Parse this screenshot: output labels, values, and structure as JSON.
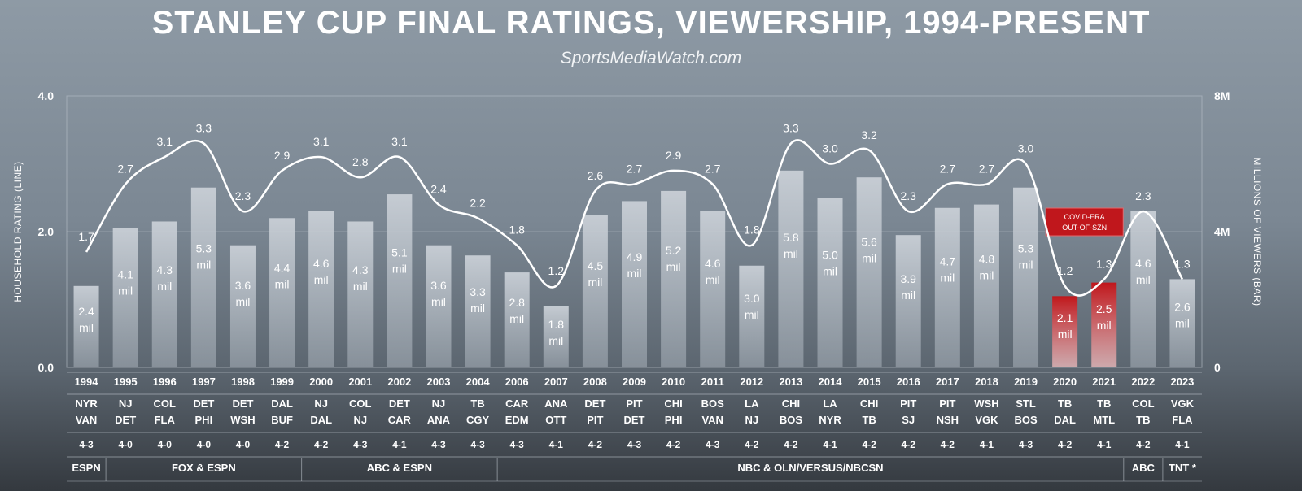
{
  "chart_data": {
    "type": "bar",
    "title": "STANLEY CUP FINAL RATINGS, VIEWERSHIP, 1994-PRESENT",
    "subtitle": "SportsMediaWatch.com",
    "ylabel_left": "HOUSEHOLD RATING (LINE)",
    "ylabel_right": "MILLIONS OF VIEWERS (BAR)",
    "ylim_left": [
      0,
      4
    ],
    "ylim_right": [
      0,
      8
    ],
    "left_ticks": [
      "0.0",
      "2.0",
      "4.0"
    ],
    "right_ticks": [
      "0",
      "4M",
      "8M"
    ],
    "mil_label": "mil",
    "annotation": "COVID-ERA OUT-OF-SZN",
    "covid_color": "#c0171c",
    "categories": [
      "1994",
      "1995",
      "1996",
      "1997",
      "1998",
      "1999",
      "2000",
      "2001",
      "2002",
      "2003",
      "2004",
      "2006",
      "2007",
      "2008",
      "2009",
      "2010",
      "2011",
      "2012",
      "2013",
      "2014",
      "2015",
      "2016",
      "2017",
      "2018",
      "2019",
      "2020",
      "2021",
      "2022",
      "2023"
    ],
    "series": [
      {
        "name": "Viewers (millions)",
        "kind": "bar",
        "values": [
          2.4,
          4.1,
          4.3,
          5.3,
          3.6,
          4.4,
          4.6,
          4.3,
          5.1,
          3.6,
          3.3,
          2.8,
          1.8,
          4.5,
          4.9,
          5.2,
          4.6,
          3.0,
          5.8,
          5.0,
          5.6,
          3.9,
          4.7,
          4.8,
          5.3,
          2.1,
          2.5,
          4.6,
          2.6
        ]
      },
      {
        "name": "Household rating",
        "kind": "line",
        "values": [
          1.7,
          2.7,
          3.1,
          3.3,
          2.3,
          2.9,
          3.1,
          2.8,
          3.1,
          2.4,
          2.2,
          1.8,
          1.2,
          2.6,
          2.7,
          2.9,
          2.7,
          1.8,
          3.3,
          3.0,
          3.2,
          2.3,
          2.7,
          2.7,
          3.0,
          1.2,
          1.3,
          2.3,
          1.3
        ]
      }
    ],
    "matchups_top": [
      "NYR",
      "NJ",
      "COL",
      "DET",
      "DET",
      "DAL",
      "NJ",
      "COL",
      "DET",
      "NJ",
      "TB",
      "CAR",
      "ANA",
      "DET",
      "PIT",
      "CHI",
      "BOS",
      "LA",
      "CHI",
      "LA",
      "CHI",
      "PIT",
      "PIT",
      "WSH",
      "STL",
      "TB",
      "TB",
      "COL",
      "VGK"
    ],
    "matchups_bottom": [
      "VAN",
      "DET",
      "FLA",
      "PHI",
      "WSH",
      "BUF",
      "DAL",
      "NJ",
      "CAR",
      "ANA",
      "CGY",
      "EDM",
      "OTT",
      "PIT",
      "DET",
      "PHI",
      "VAN",
      "NJ",
      "BOS",
      "NYR",
      "TB",
      "SJ",
      "NSH",
      "VGK",
      "BOS",
      "DAL",
      "MTL",
      "TB",
      "FLA"
    ],
    "series_results": [
      "4-3",
      "4-0",
      "4-0",
      "4-0",
      "4-0",
      "4-2",
      "4-2",
      "4-3",
      "4-1",
      "4-3",
      "4-3",
      "4-3",
      "4-1",
      "4-2",
      "4-3",
      "4-2",
      "4-3",
      "4-2",
      "4-2",
      "4-1",
      "4-2",
      "4-2",
      "4-2",
      "4-1",
      "4-3",
      "4-2",
      "4-1",
      "4-2",
      "4-1"
    ],
    "covid_years": [
      "2020",
      "2021"
    ],
    "networks": [
      {
        "label": "ESPN",
        "start": 0,
        "end": 0
      },
      {
        "label": "FOX & ESPN",
        "start": 1,
        "end": 5
      },
      {
        "label": "ABC & ESPN",
        "start": 6,
        "end": 10
      },
      {
        "label": "NBC & OLN/VERSUS/NBCSN",
        "start": 11,
        "end": 26
      },
      {
        "label": "ABC",
        "start": 27,
        "end": 27
      },
      {
        "label": "TNT *",
        "start": 28,
        "end": 28
      }
    ]
  }
}
